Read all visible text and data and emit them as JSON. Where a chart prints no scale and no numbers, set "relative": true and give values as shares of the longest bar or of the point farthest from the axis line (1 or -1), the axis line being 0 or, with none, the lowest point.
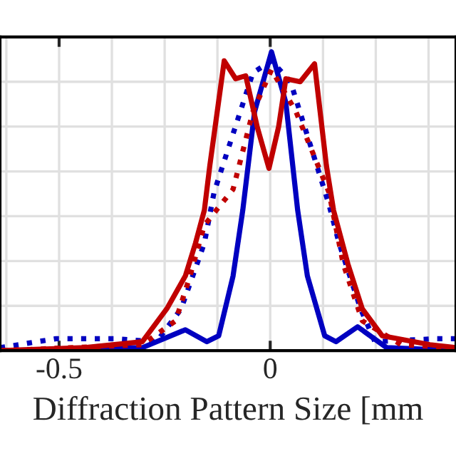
{
  "chart_data": {
    "type": "line",
    "relative": true,
    "xlabel": "Diffraction Pattern Size [mm",
    "xlim": [
      -0.64,
      0.44
    ],
    "xticks": [
      {
        "value": -0.625,
        "label": null
      },
      -0.5,
      {
        "value": -0.375,
        "label": null
      },
      {
        "value": -0.25,
        "label": null
      },
      {
        "value": -0.125,
        "label": null
      },
      0,
      {
        "value": 0.125,
        "label": null
      },
      {
        "value": 0.25,
        "label": null
      },
      {
        "value": 0.375,
        "label": null
      }
    ],
    "grid": true,
    "legend": false,
    "marker": "none",
    "series": [
      {
        "color": "#0000c0",
        "line_style": "solid",
        "x": [
          -0.64,
          -0.303,
          -0.201,
          -0.15,
          -0.122,
          -0.088,
          -0.065,
          -0.037,
          0.003,
          0.037,
          0.065,
          0.088,
          0.129,
          0.156,
          0.207,
          0.276,
          0.44
        ],
        "values": [
          0,
          0.01,
          0.07,
          0.03,
          0.05,
          0.25,
          0.47,
          0.8,
          1.0,
          0.83,
          0.47,
          0.25,
          0.05,
          0.03,
          0.08,
          0.01,
          0
        ]
      },
      {
        "color": "#0000c0",
        "line_style": "dotted",
        "x": [
          -0.64,
          -0.507,
          -0.371,
          -0.269,
          -0.211,
          -0.156,
          -0.133,
          -0.041,
          0.003,
          0.048,
          0.139,
          0.163,
          0.214,
          0.248,
          0.395,
          0.44
        ],
        "values": [
          0.01,
          0.04,
          0.04,
          0.03,
          0.14,
          0.36,
          0.53,
          0.93,
          0.97,
          0.9,
          0.49,
          0.36,
          0.14,
          0.03,
          0.04,
          0.04
        ]
      },
      {
        "color": "#c00000",
        "line_style": "solid",
        "x": [
          -0.64,
          -0.439,
          -0.303,
          -0.245,
          -0.201,
          -0.177,
          -0.156,
          -0.143,
          -0.109,
          -0.082,
          -0.058,
          -0.031,
          -0.003,
          0.02,
          0.037,
          0.071,
          0.105,
          0.133,
          0.15,
          0.184,
          0.218,
          0.265,
          0.378,
          0.44
        ],
        "values": [
          0,
          0.01,
          0.03,
          0.14,
          0.25,
          0.36,
          0.47,
          0.62,
          0.97,
          0.91,
          0.92,
          0.75,
          0.61,
          0.75,
          0.91,
          0.9,
          0.96,
          0.62,
          0.47,
          0.29,
          0.14,
          0.05,
          0.02,
          0.01
        ]
      },
      {
        "color": "#c00000",
        "line_style": "dotted",
        "x": [
          -0.64,
          -0.303,
          -0.224,
          -0.19,
          -0.156,
          -0.088,
          -0.041,
          0.003,
          0.061,
          0.139,
          0.173,
          0.218,
          0.31,
          0.44
        ],
        "values": [
          0,
          0.02,
          0.1,
          0.25,
          0.42,
          0.54,
          0.8,
          0.94,
          0.8,
          0.53,
          0.29,
          0.1,
          0.02,
          0.01
        ]
      }
    ]
  }
}
